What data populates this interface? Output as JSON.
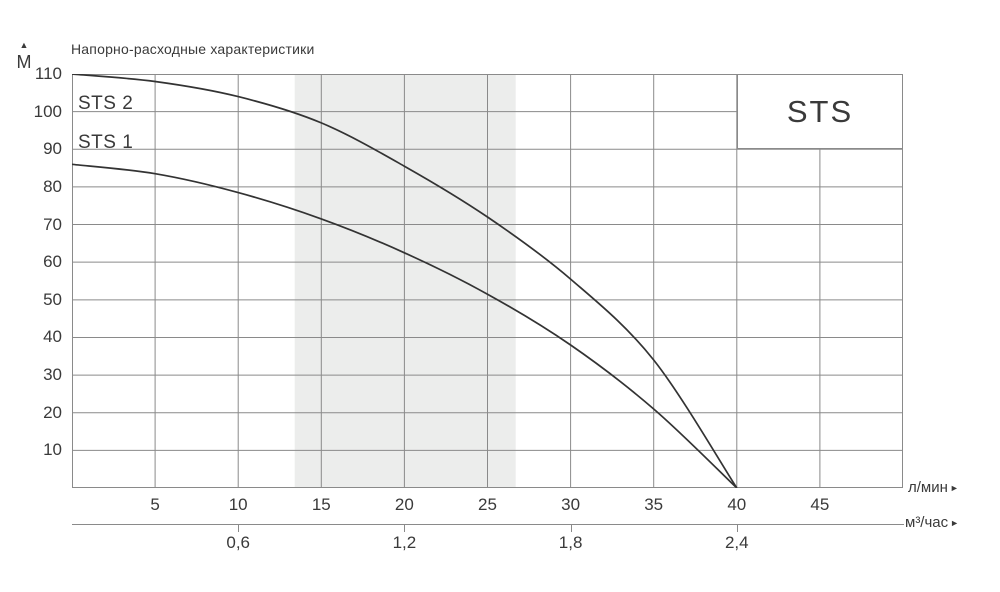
{
  "chart_data": {
    "type": "line",
    "title": "Напорно-расходные характеристики",
    "ylabel": "М",
    "xlabel_primary": "л/мин",
    "xlabel_secondary": "м³/час",
    "legend_box_label": "STS",
    "ylim": [
      0,
      110
    ],
    "xlim_lmin": [
      0,
      50
    ],
    "grid": true,
    "y_ticks": [
      110,
      100,
      90,
      80,
      70,
      60,
      50,
      40,
      30,
      20,
      10
    ],
    "x_ticks_lmin": [
      5,
      10,
      15,
      20,
      25,
      30,
      35,
      40,
      45
    ],
    "x_ticks_m3h": [
      {
        "label": "0,6",
        "at_lmin": 10
      },
      {
        "label": "1,2",
        "at_lmin": 20
      },
      {
        "label": "1,8",
        "at_lmin": 30
      },
      {
        "label": "2,4",
        "at_lmin": 40
      }
    ],
    "recommended_range_lmin": [
      13.4,
      26.7
    ],
    "series": [
      {
        "name": "STS 2",
        "points": [
          [
            0,
            110
          ],
          [
            5,
            108
          ],
          [
            10,
            104
          ],
          [
            15,
            97
          ],
          [
            20,
            85.5
          ],
          [
            25,
            72
          ],
          [
            30,
            55.5
          ],
          [
            35,
            34
          ],
          [
            40,
            0
          ]
        ]
      },
      {
        "name": "STS 1",
        "points": [
          [
            0,
            86
          ],
          [
            5,
            83.5
          ],
          [
            10,
            78.5
          ],
          [
            15,
            71.5
          ],
          [
            20,
            62.5
          ],
          [
            25,
            51.5
          ],
          [
            30,
            38
          ],
          [
            35,
            21
          ],
          [
            40,
            0
          ]
        ]
      }
    ]
  },
  "icons": {
    "up_arrow": "▲",
    "right_arrow": "►"
  },
  "colors": {
    "curve": "#333333",
    "grid": "#8a8a8a",
    "band": "#ecedec",
    "text": "#3a3a3a"
  }
}
